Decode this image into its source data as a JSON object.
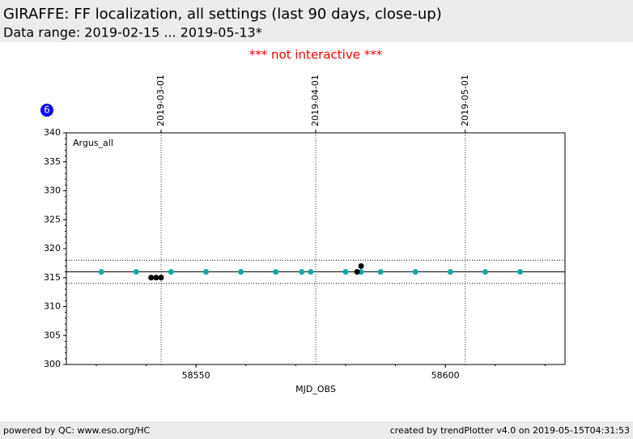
{
  "chart_data": {
    "type": "scatter",
    "title": "GIRAFFE: FF localization, all settings (last 90 days, close-up)",
    "subtitle": "Data range: 2019-02-15 ... 2019-05-13*",
    "notice": "*** not interactive ***",
    "badge": "6",
    "annotation": "Argus_all",
    "x_label": "MJD_OBS",
    "xlim": [
      58524,
      58624
    ],
    "xticks": [
      58550,
      58600
    ],
    "xminor": 10,
    "top_xticks": [
      {
        "value": 58543,
        "label": "2019-03-01"
      },
      {
        "value": 58574,
        "label": "2019-04-01"
      },
      {
        "value": 58604,
        "label": "2019-05-01"
      }
    ],
    "ylim": [
      300,
      340
    ],
    "yticks": [
      300,
      305,
      310,
      315,
      320,
      325,
      330,
      335,
      340
    ],
    "yminor": 1,
    "hlines": [
      {
        "value": 316,
        "style": "solid"
      },
      {
        "value": 318,
        "style": "dotted"
      },
      {
        "value": 314,
        "style": "dotted"
      }
    ],
    "series": [
      {
        "color": "#1aa6a6",
        "x": [
          58531,
          58538,
          58545,
          58552,
          58559,
          58566,
          58571.2,
          58573,
          58580,
          58583.1,
          58587,
          58594,
          58601,
          58608,
          58615
        ],
        "values": [
          316,
          316,
          316,
          316,
          316,
          316,
          316,
          316,
          316,
          316,
          316,
          316,
          316,
          316,
          316
        ]
      },
      {
        "color": "#000000",
        "x": [
          58541,
          58542,
          58543,
          58582.3,
          58583.1
        ],
        "values": [
          315,
          315,
          315,
          316,
          317
        ]
      }
    ],
    "footer_left": "powered by QC: www.eso.org/HC",
    "footer_right": "created by trendPlotter v4.0 on 2019-05-15T04:31:53"
  }
}
